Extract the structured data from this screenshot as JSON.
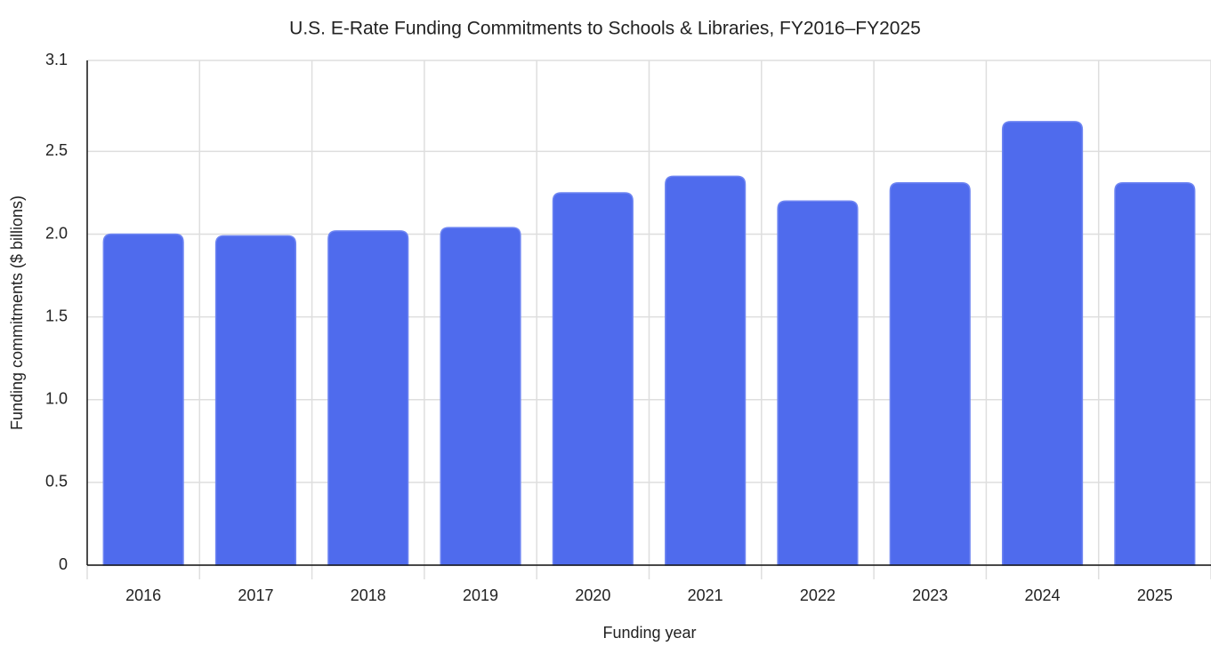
{
  "chart_data": {
    "type": "bar",
    "title": "U.S. E-Rate Funding Commitments to Schools & Libraries, FY2016–FY2025",
    "x_label": "Funding year",
    "y_label": "Funding commitments ($ billions)",
    "categories": [
      "2016",
      "2017",
      "2018",
      "2019",
      "2020",
      "2021",
      "2022",
      "2023",
      "2024",
      "2025"
    ],
    "values": [
      2.0,
      1.99,
      2.02,
      2.04,
      2.25,
      2.35,
      2.2,
      2.31,
      2.68,
      2.31
    ],
    "color": "#4f6bed",
    "ylim": [
      0,
      3.05
    ],
    "yticks": [
      0,
      0.5,
      {
        "value": 1.0,
        "label": "1.0"
      },
      1.5,
      {
        "value": 2.0,
        "label": "2.0"
      },
      2.5,
      {
        "value": 3.05,
        "label": "3.1"
      }
    ],
    "grid": true
  }
}
